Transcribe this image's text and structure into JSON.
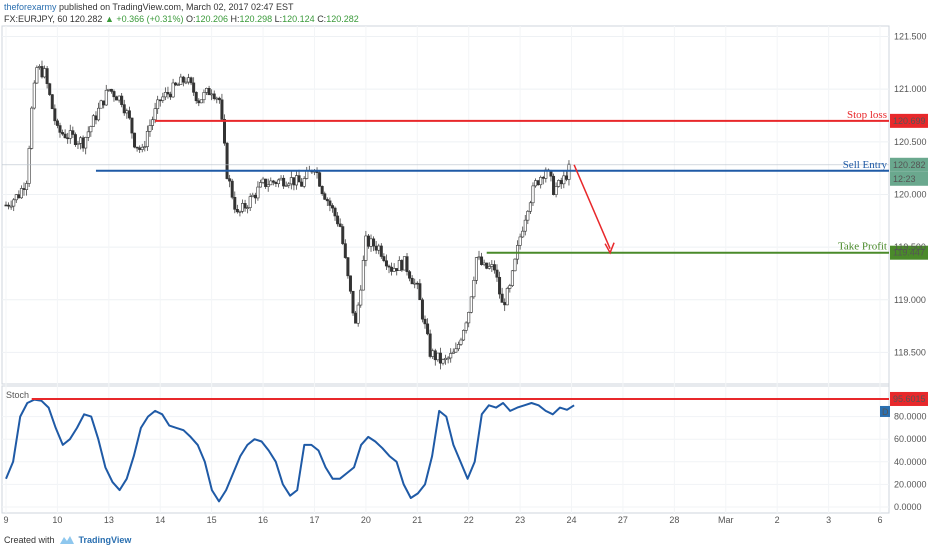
{
  "header": {
    "author": "theforexarmy",
    "published": "published on TradingView.com, March 02, 2017 02:47 EST",
    "symbol": "FX:EURJPY, 60",
    "last": "120.282",
    "change": "+0.366 (+0.31%)",
    "o_label": "O:",
    "o": "120.206",
    "h_label": "H:",
    "h": "120.298",
    "l_label": "L:",
    "l": "120.124",
    "c_label": "C:",
    "c": "120.282"
  },
  "footer": {
    "created_with": "Created with",
    "brand": "TradingView"
  },
  "colors": {
    "stop": "#e8282b",
    "entry": "#1f5aa6",
    "take": "#4a8a2a",
    "stoch": "#1f5aa6",
    "price_last": "#6aa88e"
  },
  "chart_data": [
    {
      "type": "candlestick",
      "title": "FX:EURJPY, 60",
      "ylim": [
        118.2,
        121.6
      ],
      "y_ticks": [
        "121.500",
        "121.000",
        "120.500",
        "120.000",
        "119.500",
        "119.000",
        "118.500"
      ],
      "x_ticks": [
        "9",
        "10",
        "13",
        "14",
        "15",
        "16",
        "17",
        "20",
        "21",
        "22",
        "23",
        "24",
        "27",
        "28",
        "Mar",
        "2",
        "3",
        "6"
      ],
      "levels": [
        {
          "name": "Stop loss",
          "value": 120.699
        },
        {
          "name": "Sell Entry",
          "value": 120.282,
          "countdown": "12:23"
        },
        {
          "name": "Take Profit",
          "value": 119.447
        }
      ],
      "trade_arrow": {
        "from": 120.282,
        "to": 119.447
      },
      "close_path": [
        [
          "9",
          119.9
        ],
        [
          "9.5",
          120.0
        ],
        [
          "9.8",
          120.15
        ],
        [
          "10",
          120.8
        ],
        [
          "10.2",
          121.2
        ],
        [
          "10.5",
          121.15
        ],
        [
          "11",
          120.6
        ],
        [
          "12",
          120.5
        ],
        [
          "13",
          121.0
        ],
        [
          "13.5",
          120.9
        ],
        [
          "13.8",
          120.7
        ],
        [
          "14",
          120.5
        ],
        [
          "14.3",
          120.4
        ],
        [
          "14.5",
          120.6
        ],
        [
          "15",
          120.9
        ],
        [
          "15.5",
          121.0
        ],
        [
          "16",
          121.1
        ],
        [
          "16.5",
          120.9
        ],
        [
          "17",
          121.0
        ],
        [
          "17.3",
          120.9
        ],
        [
          "17.6",
          120.2
        ],
        [
          "18",
          119.8
        ],
        [
          "19",
          120.1
        ],
        [
          "20",
          120.15
        ],
        [
          "20.5",
          120.1
        ],
        [
          "21",
          120.28
        ],
        [
          "21.3",
          120.05
        ],
        [
          "21.6",
          119.9
        ],
        [
          "22",
          119.7
        ],
        [
          "22.3",
          119.2
        ],
        [
          "22.6",
          118.75
        ],
        [
          "23",
          119.55
        ],
        [
          "23.5",
          119.5
        ],
        [
          "24",
          119.3
        ],
        [
          "24.5",
          119.35
        ],
        [
          "25",
          119.1
        ],
        [
          "25.5",
          118.5
        ],
        [
          "26",
          118.4
        ],
        [
          "26.5",
          118.5
        ],
        [
          "27",
          118.9
        ],
        [
          "27.3",
          119.4
        ],
        [
          "27.6",
          119.3
        ],
        [
          "28",
          119.3
        ],
        [
          "28.3",
          118.95
        ],
        [
          "28.6",
          119.1
        ],
        [
          "29",
          119.6
        ],
        [
          "29.3",
          119.9
        ],
        [
          "29.6",
          120.1
        ],
        [
          "30",
          120.25
        ],
        [
          "30.3",
          120.05
        ],
        [
          "30.6",
          120.1
        ],
        [
          "31",
          120.282
        ]
      ]
    },
    {
      "type": "line",
      "title": "Stoch",
      "ylim": [
        0,
        100
      ],
      "y_ticks": [
        "80.0000",
        "60.0000",
        "40.0000",
        "20.0000",
        "0.0000"
      ],
      "level": {
        "value": 95.6015,
        "label": "95.6015"
      },
      "badge": "D",
      "series": [
        {
          "values": [
            25,
            40,
            80,
            92,
            95,
            94,
            88,
            70,
            55,
            60,
            70,
            82,
            80,
            60,
            35,
            22,
            15,
            25,
            45,
            70,
            80,
            85,
            82,
            72,
            70,
            68,
            62,
            55,
            40,
            15,
            5,
            15,
            30,
            45,
            55,
            60,
            58,
            50,
            40,
            20,
            10,
            15,
            55,
            55,
            50,
            35,
            25,
            25,
            30,
            35,
            55,
            62,
            58,
            52,
            45,
            40,
            20,
            8,
            12,
            20,
            45,
            85,
            80,
            55,
            40,
            25,
            40,
            82,
            90,
            88,
            92,
            85,
            88,
            90,
            92,
            90,
            85,
            82,
            88,
            86,
            90
          ]
        }
      ]
    }
  ]
}
